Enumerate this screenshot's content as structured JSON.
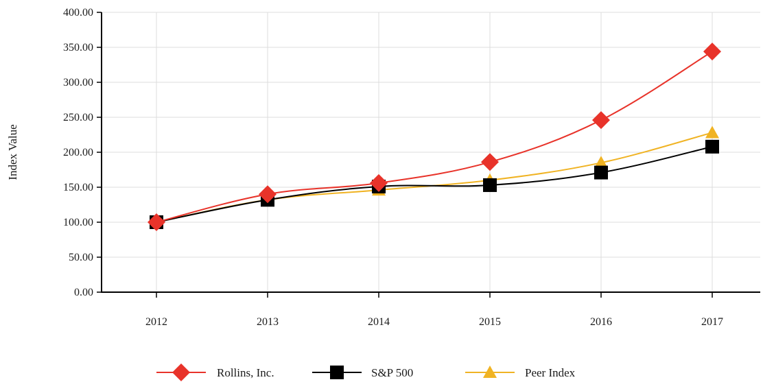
{
  "chart_data": {
    "type": "line",
    "title": "",
    "xlabel": "",
    "ylabel": "Index Value",
    "ylim": [
      0,
      400
    ],
    "y_ticks": [
      "0.00",
      "50.00",
      "100.00",
      "150.00",
      "200.00",
      "250.00",
      "300.00",
      "350.00",
      "400.00"
    ],
    "categories": [
      "2012",
      "2013",
      "2014",
      "2015",
      "2016",
      "2017"
    ],
    "grid": true,
    "legend_position": "bottom",
    "series": [
      {
        "name": "Peer Index",
        "values": [
          100,
          132,
          146,
          160,
          185,
          228
        ],
        "color": "#f0b323",
        "marker": "triangle"
      },
      {
        "name": "S&P 500",
        "values": [
          100,
          132,
          151,
          153,
          171,
          208
        ],
        "color": "#000000",
        "marker": "square"
      },
      {
        "name": "Rollins, Inc.",
        "values": [
          100,
          140,
          156,
          186,
          246,
          344
        ],
        "color": "#e8332a",
        "marker": "diamond"
      }
    ],
    "legend_order": [
      "Rollins, Inc.",
      "S&P 500",
      "Peer Index"
    ]
  }
}
